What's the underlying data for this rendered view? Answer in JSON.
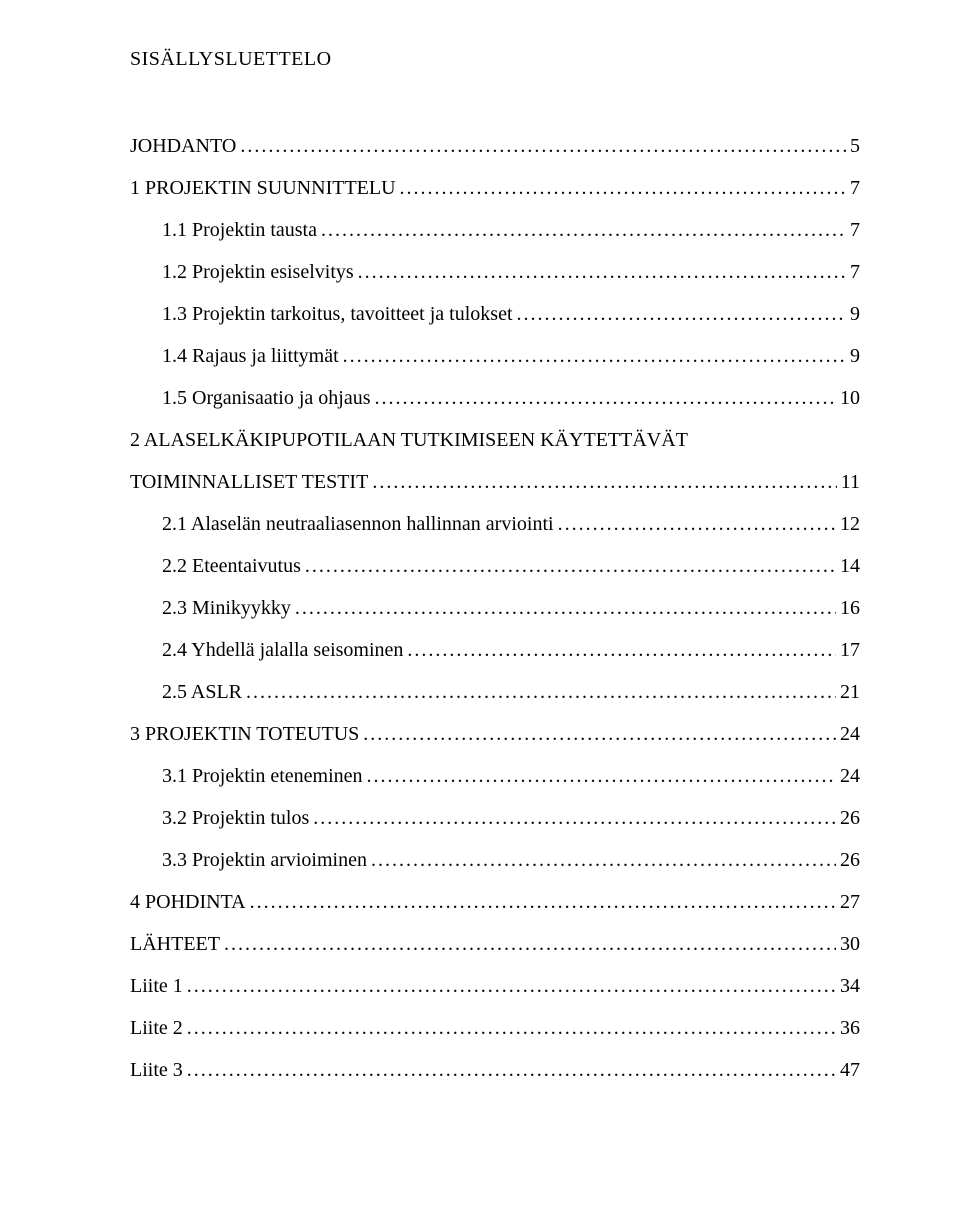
{
  "title": "SISÄLLYSLUETTELO",
  "entries": [
    {
      "label": "JOHDANTO",
      "page": "5",
      "indent": 0
    },
    {
      "label": "1 PROJEKTIN SUUNNITTELU",
      "page": "7",
      "indent": 0
    },
    {
      "label": "1.1 Projektin tausta",
      "page": "7",
      "indent": 1
    },
    {
      "label": "1.2 Projektin esiselvitys",
      "page": "7",
      "indent": 1
    },
    {
      "label": "1.3 Projektin tarkoitus, tavoitteet ja tulokset",
      "page": "9",
      "indent": 1
    },
    {
      "label": "1.4 Rajaus ja liittymät",
      "page": "9",
      "indent": 1
    },
    {
      "label": "1.5 Organisaatio ja ohjaus",
      "page": "10",
      "indent": 1
    },
    {
      "label": "2 ALASELKÄKIPUPOTILAAN TUTKIMISEEN KÄYTETTÄVÄT",
      "page": null,
      "indent": 0
    },
    {
      "label": "TOIMINNALLISET TESTIT",
      "page": "11",
      "indent": 0
    },
    {
      "label": "2.1 Alaselän neutraaliasennon hallinnan arviointi",
      "page": "12",
      "indent": 1
    },
    {
      "label": "2.2 Eteentaivutus",
      "page": "14",
      "indent": 1
    },
    {
      "label": "2.3 Minikyykky",
      "page": "16",
      "indent": 1
    },
    {
      "label": "2.4 Yhdellä jalalla seisominen",
      "page": "17",
      "indent": 1
    },
    {
      "label": "2.5 ASLR",
      "page": "21",
      "indent": 1
    },
    {
      "label": "3 PROJEKTIN TOTEUTUS",
      "page": "24",
      "indent": 0
    },
    {
      "label": "3.1 Projektin eteneminen",
      "page": "24",
      "indent": 1
    },
    {
      "label": "3.2 Projektin tulos",
      "page": "26",
      "indent": 1
    },
    {
      "label": "3.3 Projektin arvioiminen",
      "page": "26",
      "indent": 1
    },
    {
      "label": "4 POHDINTA",
      "page": "27",
      "indent": 0
    },
    {
      "label": "LÄHTEET",
      "page": "30",
      "indent": 0
    },
    {
      "label": "Liite 1",
      "page": "34",
      "indent": 0
    },
    {
      "label": "Liite 2",
      "page": "36",
      "indent": 0
    },
    {
      "label": "Liite 3",
      "page": "47",
      "indent": 0
    }
  ]
}
